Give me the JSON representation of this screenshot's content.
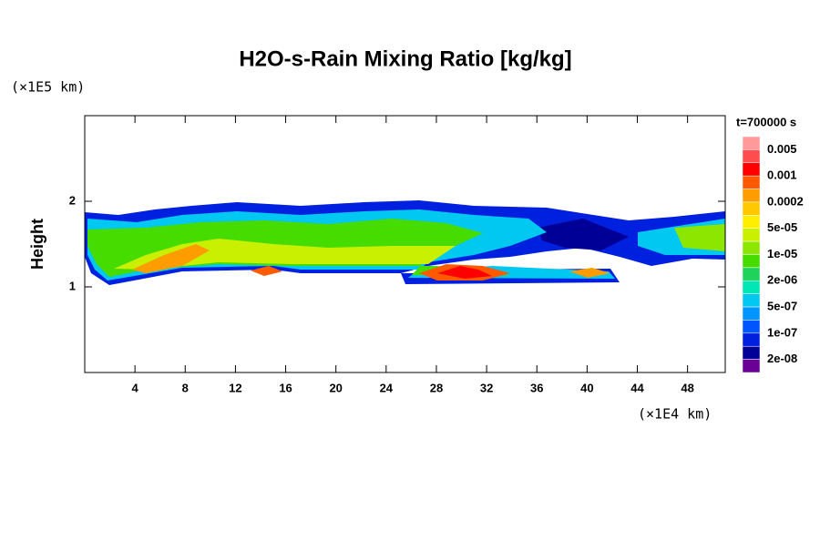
{
  "chart_data": {
    "type": "contour",
    "title": "H2O-s-Rain Mixing Ratio [kg/kg]",
    "y_unit_label": "(×1E5 km)",
    "ylabel": "Height",
    "x_unit_label": "(×1E4 km)",
    "time_label": "t=700000 s",
    "xlim": [
      0,
      51
    ],
    "ylim": [
      0,
      3
    ],
    "xticks": [
      4,
      8,
      12,
      16,
      20,
      24,
      28,
      32,
      36,
      40,
      44,
      48
    ],
    "yticks": [
      1,
      2
    ],
    "colorbar": {
      "colors": [
        "#ff9a9a",
        "#ff4c4c",
        "#ff0000",
        "#ff5a00",
        "#ff9c00",
        "#ffc800",
        "#ffee00",
        "#c8f000",
        "#8ce600",
        "#46dc00",
        "#1ed25a",
        "#00e6b4",
        "#00c8f0",
        "#0096ff",
        "#0055ff",
        "#0020e0",
        "#000096",
        "#6a0096"
      ],
      "ticks": [
        0.005,
        0.001,
        0.0002,
        {
          "value": 5e-05,
          "label": "5e-05"
        },
        {
          "value": 1e-05,
          "label": "1e-05"
        },
        {
          "value": 2e-06,
          "label": "2e-06"
        },
        {
          "value": 5e-07,
          "label": "5e-07"
        },
        {
          "value": 1e-07,
          "label": "1e-07"
        },
        {
          "value": 2e-08,
          "label": "2e-08"
        }
      ]
    }
  }
}
